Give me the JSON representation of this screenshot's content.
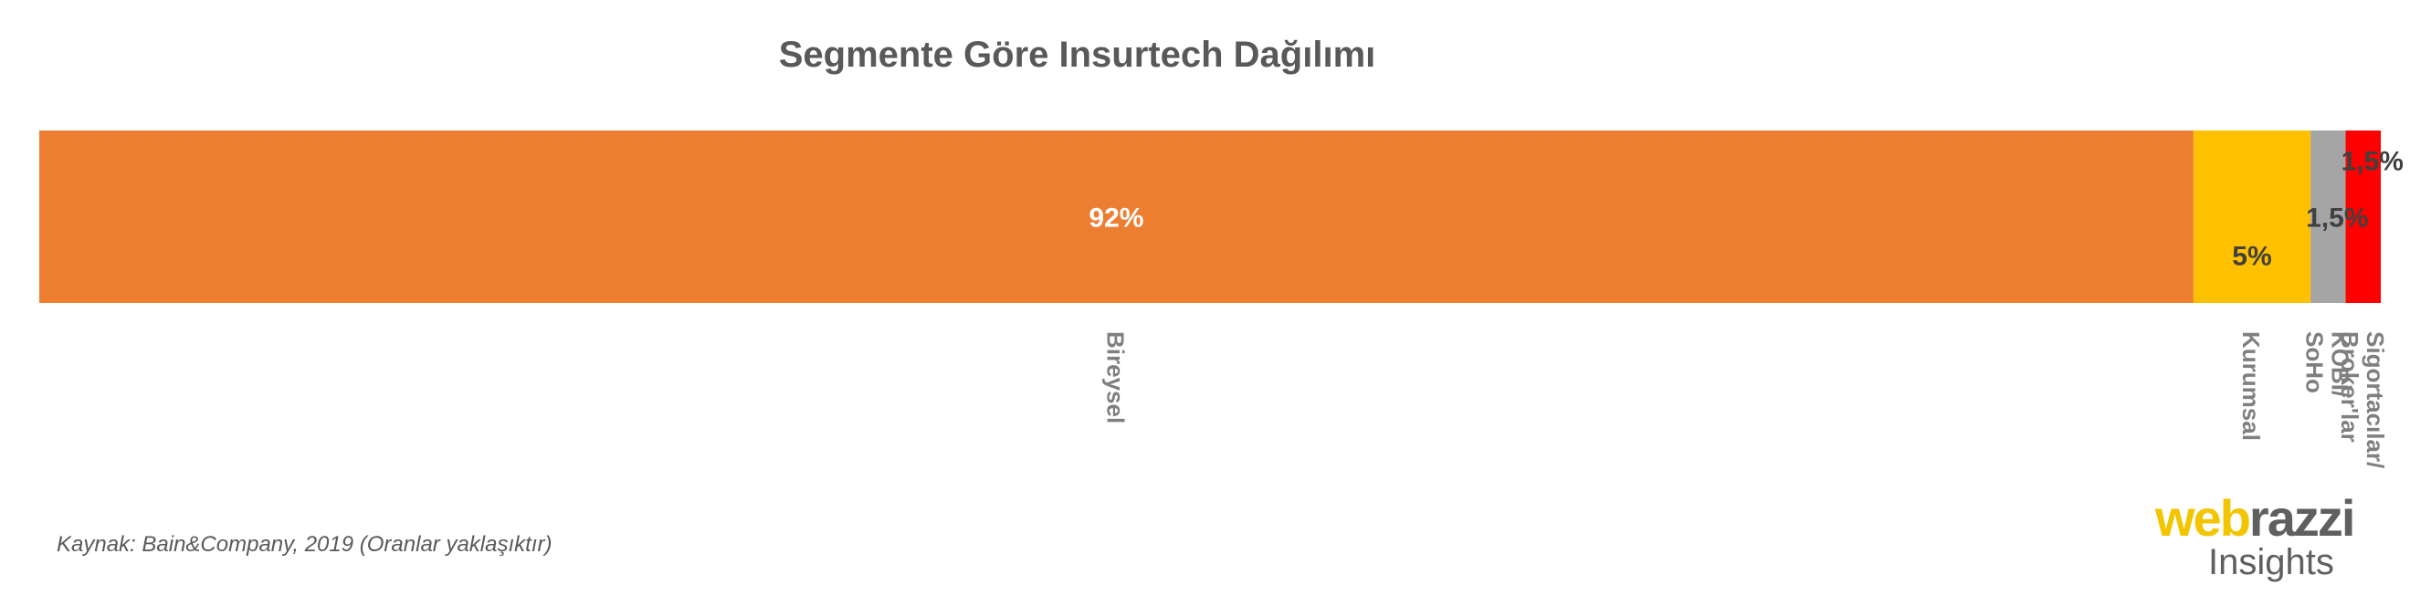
{
  "chart_data": {
    "type": "bar",
    "title": "Segmente Göre Insurtech Dağılımı",
    "orientation": "horizontal-stacked",
    "categories": [
      "Bireysel",
      "Kurumsal",
      "KOBİ/ SoHo",
      "Sigortacılar/ Broker'lar"
    ],
    "values": [
      92,
      5,
      1.5,
      1.5
    ],
    "value_labels": [
      "92%",
      "5%",
      "1,5%",
      "1,5%"
    ],
    "colors": [
      "#ed7d31",
      "#ffc000",
      "#a5a5a5",
      "#ff0000"
    ],
    "label_colors": [
      "#ffffff",
      "#404040",
      "#404040",
      "#404040"
    ],
    "xlim": [
      0,
      100
    ],
    "legend": "none",
    "grid": false
  },
  "footer": {
    "source": "Kaynak: Bain&Company, 2019 (Oranlar yaklaşıktır)"
  },
  "logo": {
    "part1": "web",
    "part2": "razzi",
    "sub": "Insights",
    "colors": {
      "web": "#f2c500",
      "razzi": "#5f5f5f"
    }
  }
}
